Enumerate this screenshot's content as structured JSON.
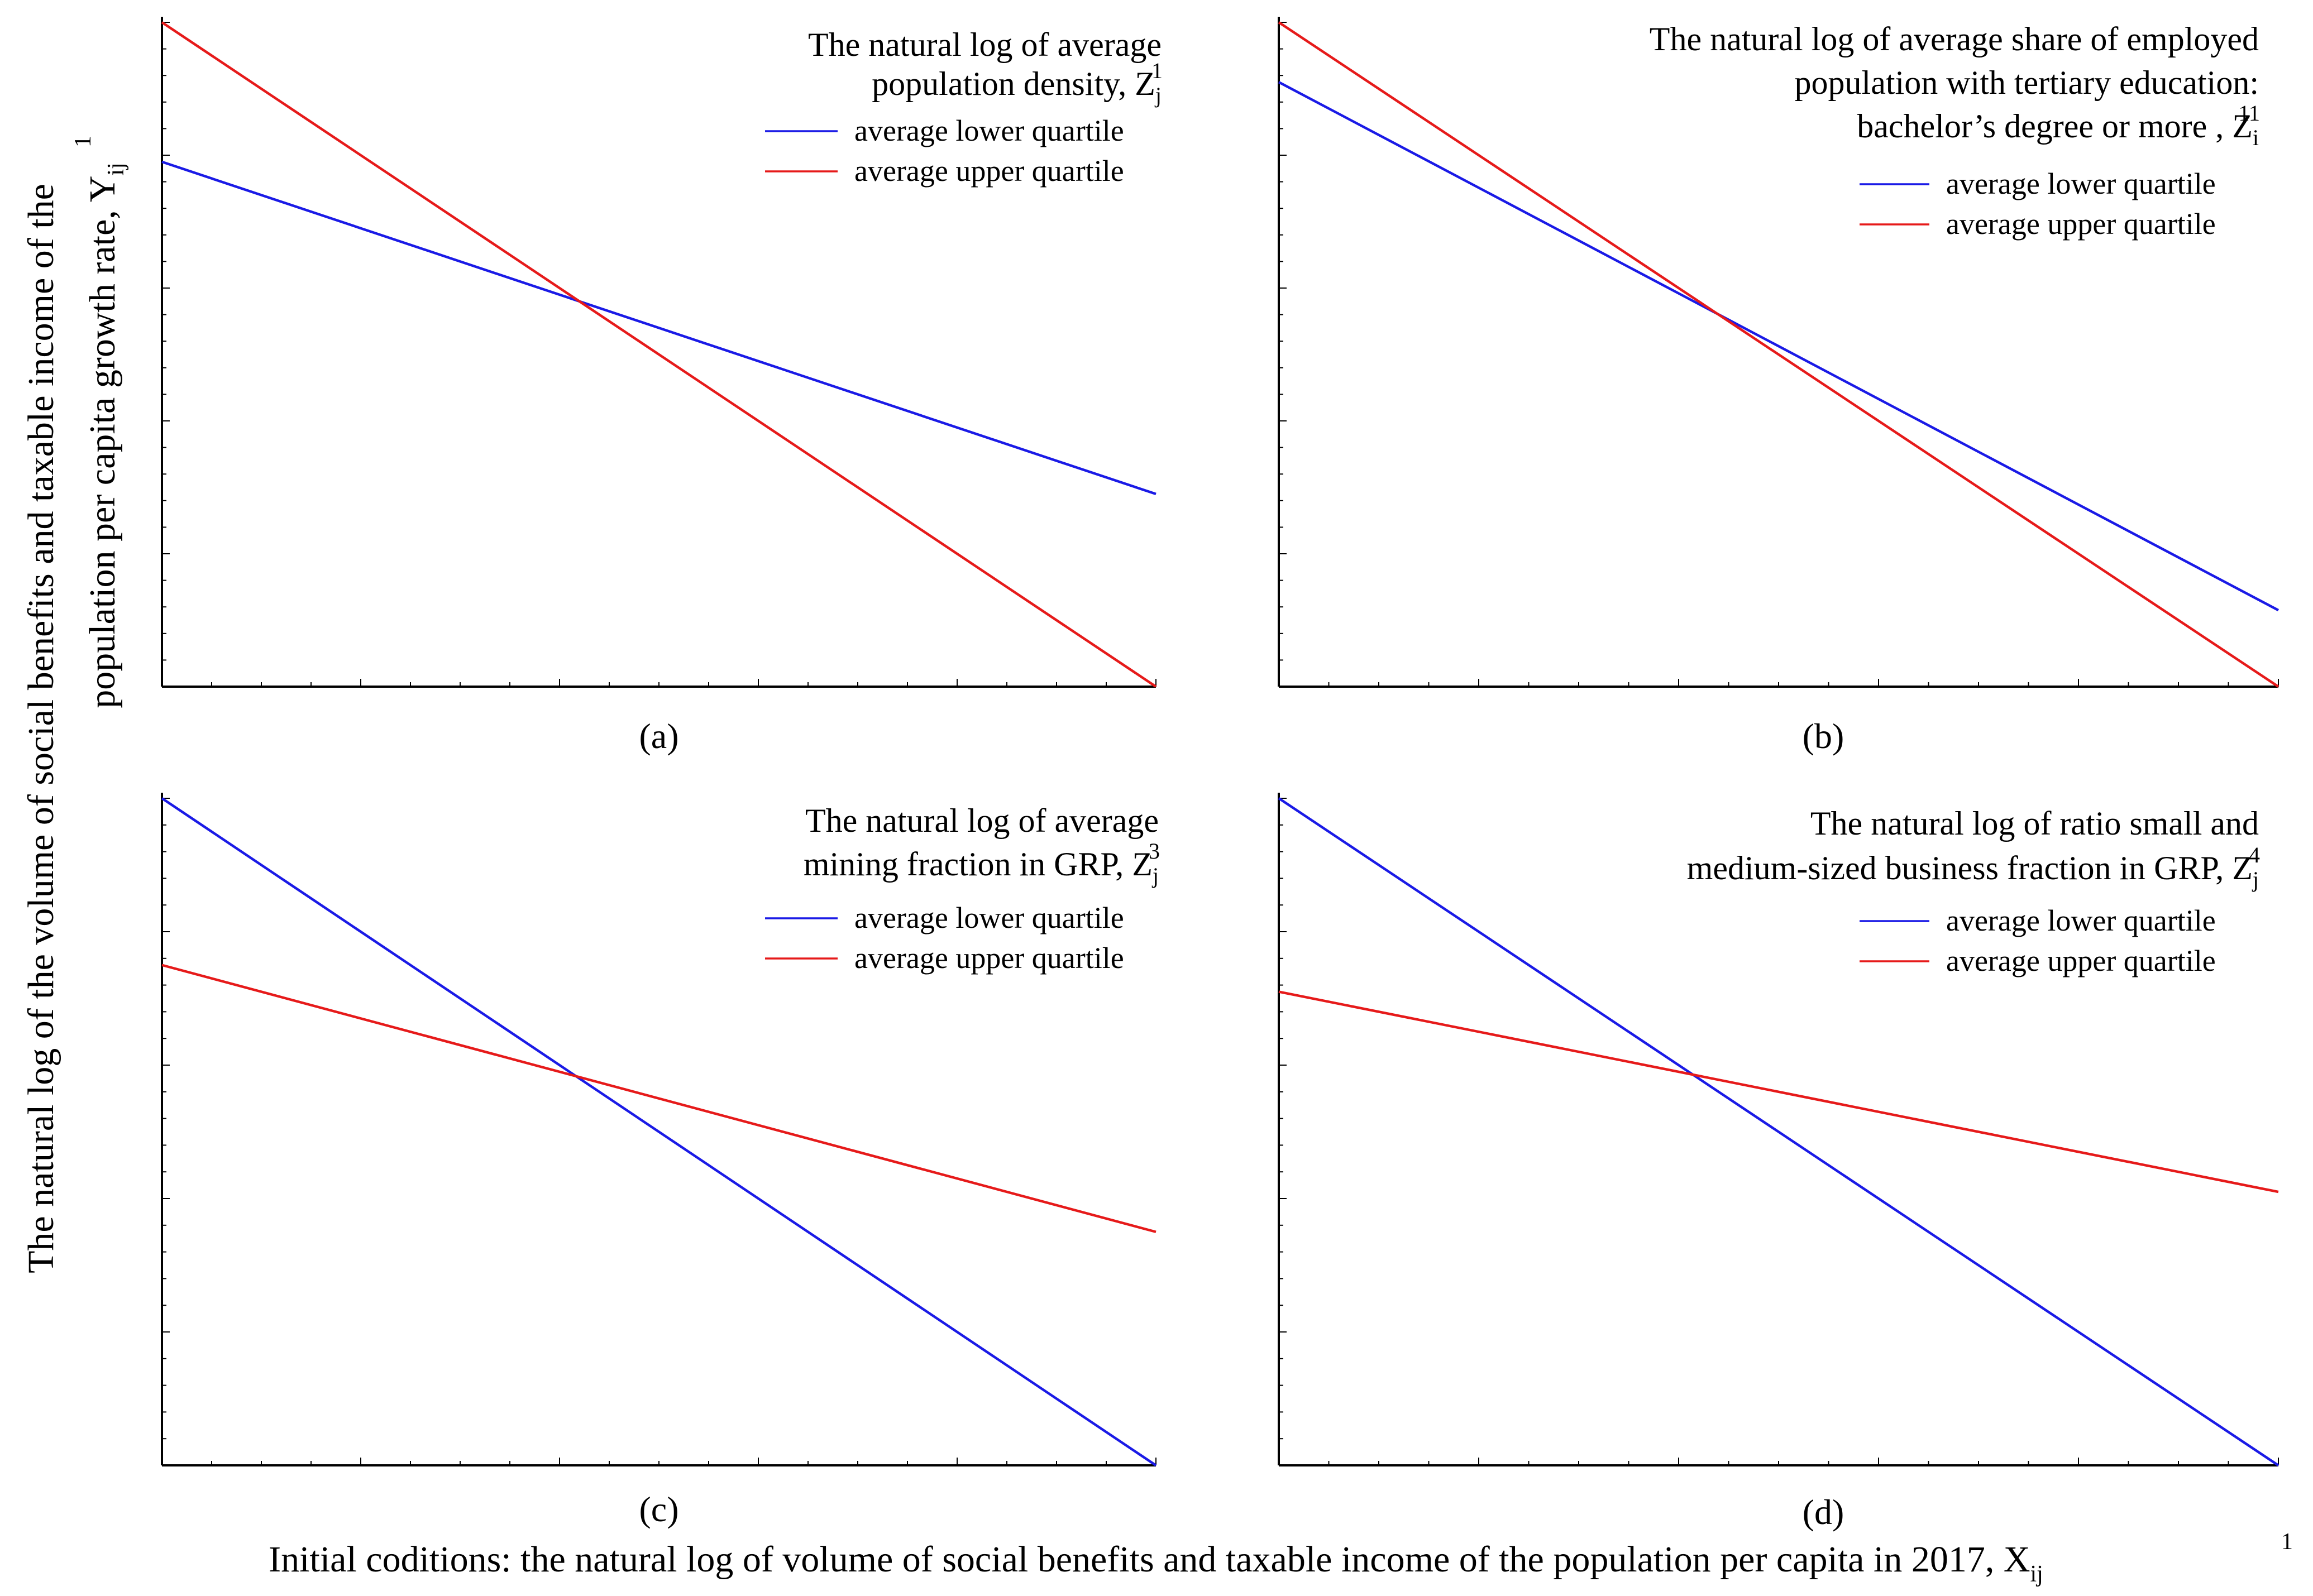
{
  "figure": {
    "y_axis_label": {
      "line1": "The natural log of the volume of social benefits and taxable income of the",
      "line2": "population  per capita  growth rate,  Y",
      "sub": "ij",
      "sup": "1"
    },
    "x_axis_label": {
      "text": "Initial coditions: the natural log of volume of social benefits and taxable income of the population per capita in 2017,  X",
      "sub": "ij",
      "sup": "1"
    }
  },
  "colors": {
    "lower": "#1a1ae6",
    "upper": "#e61a1a",
    "axis": "#000000"
  },
  "chart_data": [
    {
      "type": "line",
      "panel_label": "(a)",
      "title_lines": [
        "The natural log of average",
        "population density,  Z"
      ],
      "title_sub": "j",
      "title_sup": "1",
      "x": [
        0,
        1
      ],
      "xlim": [
        0,
        1
      ],
      "ylim": [
        0,
        1
      ],
      "series": [
        {
          "name": "average lower quartile",
          "values": [
            0.79,
            0.29
          ]
        },
        {
          "name": "average upper quartile",
          "values": [
            1.0,
            0.0
          ]
        }
      ]
    },
    {
      "type": "line",
      "panel_label": "(b)",
      "title_lines": [
        "The natural log of average share of employed",
        "population with tertiary education:",
        "bachelor’s degree or more ,  Z"
      ],
      "title_sub": "i",
      "title_sup": "11",
      "x": [
        0,
        1
      ],
      "xlim": [
        0,
        1
      ],
      "ylim": [
        0,
        1
      ],
      "series": [
        {
          "name": "average lower quartile",
          "values": [
            0.91,
            0.115
          ]
        },
        {
          "name": "average upper quartile",
          "values": [
            1.0,
            0.0
          ]
        }
      ]
    },
    {
      "type": "line",
      "panel_label": "(c)",
      "title_lines": [
        "The natural log of average",
        "mining fraction in GRP,  Z"
      ],
      "title_sub": "j",
      "title_sup": "3",
      "x": [
        0,
        1
      ],
      "xlim": [
        0,
        1
      ],
      "ylim": [
        0,
        1
      ],
      "series": [
        {
          "name": "average lower quartile",
          "values": [
            1.0,
            0.0
          ]
        },
        {
          "name": "average upper quartile",
          "values": [
            0.75,
            0.35
          ]
        }
      ]
    },
    {
      "type": "line",
      "panel_label": "(d)",
      "title_lines": [
        "The natural log of ratio small and",
        "medium-sized business fraction in GRP,  Z"
      ],
      "title_sub": "j",
      "title_sup": "4",
      "x": [
        0,
        1
      ],
      "xlim": [
        0,
        1
      ],
      "ylim": [
        0,
        1
      ],
      "series": [
        {
          "name": "average lower quartile",
          "values": [
            1.0,
            0.0
          ]
        },
        {
          "name": "average upper quartile",
          "values": [
            0.71,
            0.41
          ]
        }
      ]
    }
  ]
}
